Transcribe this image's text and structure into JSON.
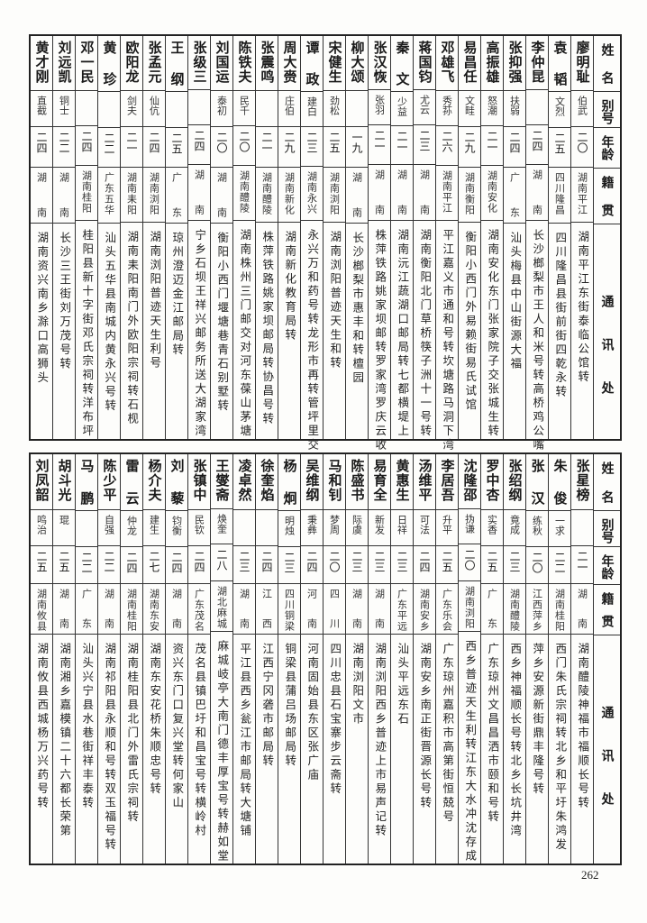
{
  "headers": [
    "姓名",
    "别号",
    "年龄",
    "籍贯",
    "通讯处"
  ],
  "page_number": "262",
  "tables": [
    {
      "rows": [
        {
          "name": "廖明耻",
          "alias": "伯武",
          "age": "二〇",
          "native": "湖南平江",
          "address": "湖南平江东街泰临公馆转"
        },
        {
          "name": "袁韬",
          "alias": "文烈",
          "age": "二五",
          "native": "四川隆昌",
          "address": "四川隆昌县街前街四乾永转"
        },
        {
          "name": "李仲昆",
          "alias": "",
          "age": "二四",
          "native": "湖南",
          "address": "长沙榔梨市王人和米号转高桥鸡公嘴"
        },
        {
          "name": "张抑强",
          "alias": "扶弱",
          "age": "二四",
          "native": "广东",
          "address": "汕头梅县中山街源大福"
        },
        {
          "name": "高振雄",
          "alias": "怒潮",
          "age": "二一",
          "native": "湖南安化",
          "address": "湖南安化东门张家院子交张城生转"
        },
        {
          "name": "易昌任",
          "alias": "文畦",
          "age": "二九",
          "native": "湖南衡阳",
          "address": "衡阳小西门外易赖街易氏试馆"
        },
        {
          "name": "邓雄飞",
          "alias": "秀荪",
          "age": "二六",
          "native": "湖南平江",
          "address": "平江嘉义市通和号转坎塘路马洞下湾"
        },
        {
          "name": "蒋国钧",
          "alias": "尤云",
          "age": "二三",
          "native": "湖南",
          "address": "湖南衡阳北门草桥筷子洲十一号转"
        },
        {
          "name": "秦文",
          "alias": "少益",
          "age": "二一",
          "native": "湖南",
          "address": "湖南沅江蔬湖口邮局转七都横堤上"
        },
        {
          "name": "张汉恢",
          "alias": "张羽",
          "age": "二一",
          "native": "湖南",
          "address": "株萍铁路姚家坝邮转罗家湾罗庆云收"
        },
        {
          "name": "柳大颂",
          "alias": "",
          "age": "一九",
          "native": "湖南",
          "address": "长沙榔梨市惠丰和转檀园"
        },
        {
          "name": "宋健生",
          "alias": "劲松",
          "age": "二五",
          "native": "湖南浏阳",
          "address": "湖南浏阳普迹天生和转"
        },
        {
          "name": "谭政",
          "alias": "建白",
          "age": "二三",
          "native": "湖南永兴",
          "address": "永兴万和药号转龙形市再转管坪里交"
        },
        {
          "name": "周大赍",
          "alias": "庄伯",
          "age": "二九",
          "native": "湖南新化",
          "address": "湖南新化教育局转"
        },
        {
          "name": "张震鸣",
          "alias": "",
          "age": "二一",
          "native": "湖南醴陵",
          "address": "株萍铁路姚家坝邮局转协昌号转"
        },
        {
          "name": "陈铁夫",
          "alias": "民千",
          "age": "二〇",
          "native": "湖南醴陵",
          "address": "湖南株州三门邮交对河东葆山茅塘"
        },
        {
          "name": "刘国运",
          "alias": "泰初",
          "age": "二〇",
          "native": "湖南",
          "address": "衡阳小西门堰塘巷青石别墅转"
        },
        {
          "name": "张级三",
          "alias": "",
          "age": "二四",
          "native": "湖南",
          "address": "宁乡石坝王祥兴邮务所送大湖家湾"
        },
        {
          "name": "王纲",
          "alias": "",
          "age": "二五",
          "native": "广东",
          "address": "琼州澄迈金江邮局转"
        },
        {
          "name": "张孟元",
          "alias": "仙伉",
          "age": "二四",
          "native": "湖南浏阳",
          "address": "湖南浏阳普迹天生利号"
        },
        {
          "name": "欧阳龙",
          "alias": "剑夫",
          "age": "二一",
          "native": "湖南耒阳",
          "address": "湖南耒阳南门外欧阳宗祠转石枧"
        },
        {
          "name": "黄珍",
          "alias": "",
          "age": "二二",
          "native": "广东五华",
          "address": "汕头五华县南城内黄永兴号转"
        },
        {
          "name": "邓一民",
          "alias": "",
          "age": "二四",
          "native": "湖南桂阳",
          "address": "桂阳县新十字街邓氏宗祠转洋布坪"
        },
        {
          "name": "刘远凯",
          "alias": "铜士",
          "age": "二二",
          "native": "湖南",
          "address": "长沙三王街刘万茂号转"
        },
        {
          "name": "黄才刚",
          "alias": "直截",
          "age": "二四",
          "native": "湖南",
          "address": "湖南资兴南乡滁口高狮头"
        }
      ]
    },
    {
      "rows": [
        {
          "name": "张星榜",
          "alias": "",
          "age": "二一",
          "native": "湖南",
          "address": "湖南醴陵神福市福顺长号转"
        },
        {
          "name": "朱俊",
          "alias": "一求",
          "age": "二二",
          "native": "湖南桂阳",
          "address": "西门朱氏宗祠转北乡和平圩朱鸿发"
        },
        {
          "name": "张汉",
          "alias": "练秋",
          "age": "二〇",
          "native": "江西萍乡",
          "address": "萍乡安源新街鼎丰隆号转"
        },
        {
          "name": "张绍纲",
          "alias": "竟成",
          "age": "二三",
          "native": "湖南醴陵",
          "address": "西乡神福顺长号转北乡长坑井湾"
        },
        {
          "name": "罗中杏",
          "alias": "实香",
          "age": "二五",
          "native": "广东",
          "address": "广东琼州文昌昌洒市颐和号转"
        },
        {
          "name": "沈隆邵",
          "alias": "㧑谦",
          "age": "二〇",
          "native": "湖南浏阳",
          "address": "西乡普迹天生利转江东大水冲沈存成"
        },
        {
          "name": "李居吾",
          "alias": "升平",
          "age": "二五",
          "native": "广东乐会",
          "address": "广东琼州嘉积市高第街恒兢号"
        },
        {
          "name": "汤维平",
          "alias": "可法",
          "age": "二四",
          "native": "湖南安乡",
          "address": "湖南安乡南正街晋源长号转"
        },
        {
          "name": "黄惠生",
          "alias": "日祥",
          "age": "二三",
          "native": "广东平远",
          "address": "汕头平远东石"
        },
        {
          "name": "易育全",
          "alias": "新发",
          "age": "二三",
          "native": "湖南",
          "address": "湖南浏阳西乡普迹上市易声记转"
        },
        {
          "name": "陈盛书",
          "alias": "际虞",
          "age": "二三",
          "native": "湖南",
          "address": "湖南浏阳文市"
        },
        {
          "name": "马和钊",
          "alias": "梦周",
          "age": "二〇",
          "native": "四川",
          "address": "四川忠县石宝寨步云斋转"
        },
        {
          "name": "吴维纲",
          "alias": "秉彝",
          "age": "二四",
          "native": "河南",
          "address": "河南固始县东区张广庙"
        },
        {
          "name": "杨炯",
          "alias": "明烛",
          "age": "二三",
          "native": "四川铜梁",
          "address": "铜梁县蒲吕场邮局转"
        },
        {
          "name": "徐奎焰",
          "alias": "",
          "age": "二四",
          "native": "江西",
          "address": "江西宁冈砻市邮局转"
        },
        {
          "name": "凌卓然",
          "alias": "",
          "age": "二三",
          "native": "湖南",
          "address": "平江县西乡瓮江市邮局转大塘铺"
        },
        {
          "name": "王燮斋",
          "alias": "焕奎",
          "age": "二八",
          "native": "湖北麻城",
          "address": "麻城岐亭大南门德丰厚宝号转赫如堂"
        },
        {
          "name": "张镇中",
          "alias": "民钦",
          "age": "二四",
          "native": "广东茂名",
          "address": "茂名县镇巴圩和昌宝号转横岭村"
        },
        {
          "name": "刘藜",
          "alias": "钧衡",
          "age": "二四",
          "native": "湖南",
          "address": "资兴东门口复兴堂转何家山"
        },
        {
          "name": "杨介夫",
          "alias": "建生",
          "age": "二七",
          "native": "湖南东安",
          "address": "湖南东安花桥朱顺忠号转"
        },
        {
          "name": "雷云",
          "alias": "仲龙",
          "age": "二四",
          "native": "湖南桂阳",
          "address": "湖南桂阳县北门外雷氏宗祠转"
        },
        {
          "name": "陈少平",
          "alias": "自强",
          "age": "二二",
          "native": "湖南",
          "address": "湖南祁阳县永顺和号转双玉福号转"
        },
        {
          "name": "马鹏",
          "alias": "",
          "age": "二二",
          "native": "广东",
          "address": "汕头兴宁县水巷街祥丰泰转"
        },
        {
          "name": "胡斗光",
          "alias": "琨",
          "age": "二五",
          "native": "湖南",
          "address": "湖南湘乡嘉模镇二十六都长荣第"
        },
        {
          "name": "刘凤韶",
          "alias": "鸣治",
          "age": "二五",
          "native": "湖南攸县",
          "address": "湖南攸县西城杨万兴药号转"
        }
      ]
    }
  ]
}
